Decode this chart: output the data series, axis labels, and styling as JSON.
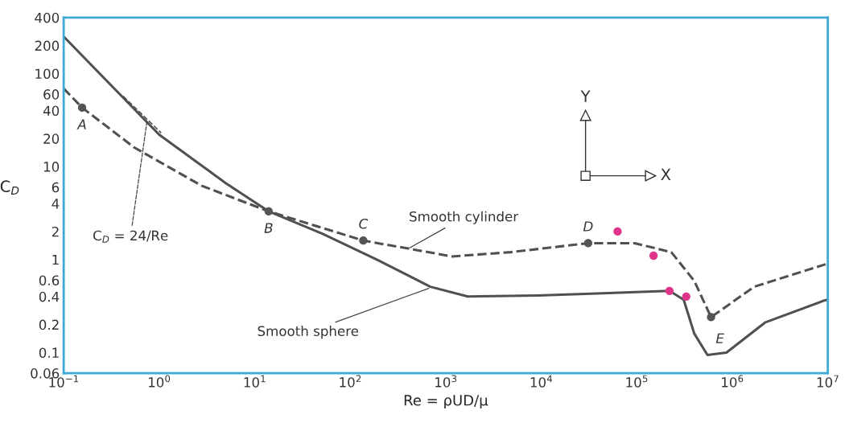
{
  "chart_data": {
    "type": "line",
    "xlabel": "Re = ρUD/μ",
    "ylabel": "C$_{D}$",
    "log": "xy",
    "grid": false,
    "legend": false,
    "xlim": [
      0.1,
      10000000
    ],
    "ylim": [
      0.06,
      400
    ],
    "xticks": [
      {
        "value": 0.1,
        "label": "10$^{−1}$"
      },
      {
        "value": 1,
        "label": "10$^{0}$"
      },
      {
        "value": 10,
        "label": "10$^{1}$"
      },
      {
        "value": 100,
        "label": "10$^{2}$"
      },
      {
        "value": 1000,
        "label": "10$^{3}$"
      },
      {
        "value": 10000,
        "label": "10$^{4}$"
      },
      {
        "value": 100000,
        "label": "10$^{5}$"
      },
      {
        "value": 1000000,
        "label": "10$^{6}$"
      },
      {
        "value": 10000000,
        "label": "10$^{7}$"
      }
    ],
    "yticks": [
      0.06,
      0.1,
      0.2,
      0.4,
      0.6,
      1,
      2,
      4,
      6,
      10,
      20,
      40,
      60,
      100,
      200,
      400
    ],
    "series": [
      {
        "line_style": "solid",
        "color": "#505050",
        "x": [
          0.1,
          1,
          5,
          14,
          51,
          190,
          690,
          1700,
          9300,
          66000,
          220000,
          310000,
          400000,
          550000,
          870000,
          2200000,
          9000000,
          10000000
        ],
        "values": [
          250,
          22,
          6.6,
          3.3,
          1.9,
          1.0,
          0.51,
          0.4,
          0.41,
          0.44,
          0.46,
          0.37,
          0.16,
          0.094,
          0.1,
          0.21,
          0.36,
          0.37
        ]
      },
      {
        "line_style": "dashed",
        "color": "#505050",
        "x": [
          0.1,
          0.156,
          0.55,
          2.8,
          14,
          137,
          1170,
          4800,
          31000,
          95000,
          230000,
          400000,
          600000,
          1700000,
          9500000,
          10000000
        ],
        "values": [
          69,
          43,
          16,
          6.2,
          3.3,
          1.6,
          1.08,
          1.2,
          1.5,
          1.5,
          1.2,
          0.59,
          0.24,
          0.51,
          0.89,
          0.9
        ]
      },
      {
        "line_style": "dashed",
        "color": "#505050",
        "x": [
          0.42,
          1.05
        ],
        "values": [
          57,
          23
        ]
      },
      {
        "type": "scatter",
        "marker": "circle",
        "color": "#555555",
        "x": [
          0.156,
          14,
          137,
          31000,
          600000
        ],
        "values": [
          43,
          3.3,
          1.6,
          1.5,
          0.24
        ]
      },
      {
        "type": "scatter",
        "marker": "circle",
        "color": "#e0338c",
        "x": [
          63000,
          150000,
          220000,
          330000
        ],
        "values": [
          2.0,
          1.1,
          0.46,
          0.4
        ]
      }
    ],
    "annotations": [
      {
        "text": "A",
        "x": 0.156,
        "y": 43
      },
      {
        "text": "B",
        "x": 14,
        "y": 3.3
      },
      {
        "text": "C",
        "x": 137,
        "y": 1.6
      },
      {
        "text": "D",
        "x": 31000,
        "y": 1.5
      },
      {
        "text": "E",
        "x": 600000,
        "y": 0.24
      },
      {
        "text": "C$_{D}$ = 24/Re",
        "x": 0.75,
        "y": 32
      },
      {
        "text": "Smooth cylinder",
        "x": 400,
        "y": 1.3
      },
      {
        "text": "Smooth sphere",
        "x": 700,
        "y": 0.5
      },
      "Y",
      "X"
    ]
  }
}
